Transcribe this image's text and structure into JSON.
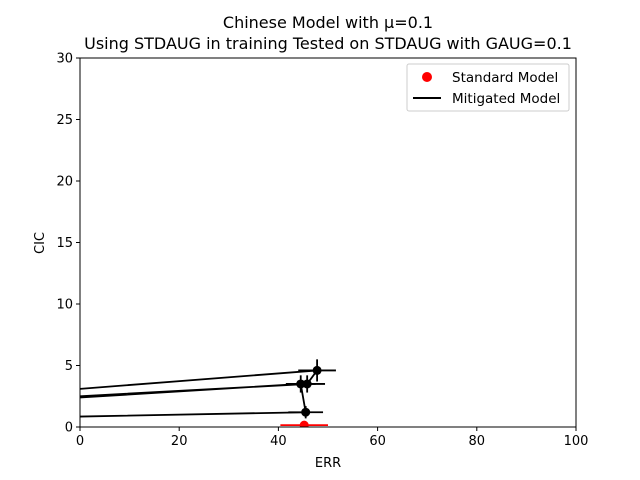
{
  "chart_data": {
    "type": "scatter",
    "title": "Chinese Model with μ=0.1",
    "subtitle": "Using STDAUG in training Tested on STDAUG with GAUG=0.1",
    "xlabel": "ERR",
    "ylabel": "CIC",
    "xlim": [
      0,
      100
    ],
    "ylim": [
      0,
      30
    ],
    "xticks": [
      "0",
      "20",
      "40",
      "60",
      "80",
      "100"
    ],
    "yticks": [
      "0",
      "5",
      "10",
      "15",
      "20",
      "25",
      "30"
    ],
    "grid": false,
    "legend_position": "top-right",
    "legend": [
      {
        "label": "Standard Model",
        "marker": "point",
        "color": "#ff0000"
      },
      {
        "label": "Mitigated Model",
        "marker": "line",
        "color": "#000000"
      }
    ],
    "series": [
      {
        "name": "Standard Model",
        "color": "#ff0000",
        "points": [
          {
            "x": 45.2,
            "y": 0.15,
            "xerr": 4.8,
            "yerr": 0.15
          }
        ]
      },
      {
        "name": "Mitigated Model",
        "color": "#000000",
        "points": [
          {
            "x": 45.5,
            "y": 1.2,
            "xerr": 3.5,
            "yerr": 0.5
          },
          {
            "x": 44.5,
            "y": 3.5,
            "xerr": 3.0,
            "yerr": 0.7
          },
          {
            "x": 45.8,
            "y": 3.5,
            "xerr": 3.6,
            "yerr": 0.7
          },
          {
            "x": 47.8,
            "y": 4.6,
            "xerr": 3.8,
            "yerr": 0.9
          }
        ],
        "line_points": [
          {
            "x": 0,
            "y": 0.85
          },
          {
            "x": 45.5,
            "y": 1.2
          },
          {
            "x": 44.5,
            "y": 3.5
          },
          {
            "x": 0,
            "y": 2.4
          },
          {
            "x": 0,
            "y": 2.5
          },
          {
            "x": 45.8,
            "y": 3.5
          },
          {
            "x": 47.8,
            "y": 4.6
          },
          {
            "x": 0,
            "y": 3.1
          }
        ]
      }
    ]
  }
}
